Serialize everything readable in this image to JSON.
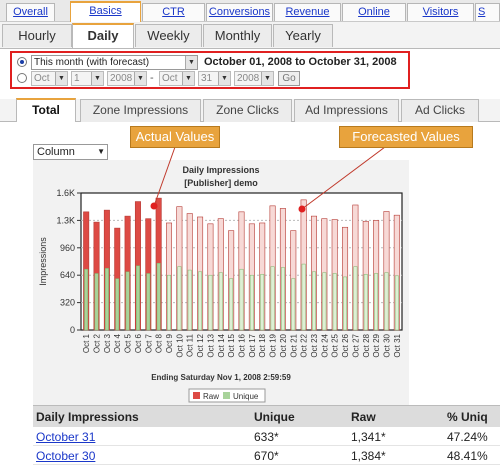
{
  "top_tabs": [
    {
      "label": "Overall"
    },
    {
      "label": "Basics"
    },
    {
      "label": "CTR"
    },
    {
      "label": "Conversions"
    },
    {
      "label": "Revenue"
    },
    {
      "label": "Online"
    },
    {
      "label": "Visitors"
    },
    {
      "label": "S"
    }
  ],
  "period_tabs": [
    {
      "label": "Hourly"
    },
    {
      "label": "Daily"
    },
    {
      "label": "Weekly"
    },
    {
      "label": "Monthly"
    },
    {
      "label": "Yearly"
    }
  ],
  "date_filter": {
    "preset_value": "This month (with forecast)",
    "range_text": "October 01, 2008 to October 31, 2008",
    "from_month": "Oct",
    "from_day": "1",
    "from_year": "2008",
    "to_month": "Oct",
    "to_day": "31",
    "to_year": "2008",
    "dash": "-",
    "go_label": "Go"
  },
  "sub_tabs": [
    {
      "label": "Total"
    },
    {
      "label": "Zone Impressions"
    },
    {
      "label": "Zone Clicks"
    },
    {
      "label": "Ad Impressions"
    },
    {
      "label": "Ad Clicks"
    }
  ],
  "chart_type_select": "Column",
  "callouts": {
    "actual": "Actual Values",
    "forecast": "Forecasted Values"
  },
  "colors": {
    "raw_actual": "#dd4a44",
    "raw_forecast": "#f7d9d6",
    "unique_actual": "#a8d39a",
    "unique_forecast": "#ddf0d4",
    "accent": "#e8a33d"
  },
  "chart_data": {
    "type": "bar",
    "title": "Daily Impressions",
    "subtitle": "[Publisher] demo",
    "ylabel": "Impressions",
    "footer": "Ending Saturday Nov 1, 2008 2:59:59",
    "ylim": [
      0,
      1600
    ],
    "yticks": [
      "0",
      "320",
      "640",
      "960",
      "1.3K",
      "1.6K"
    ],
    "ytick_values": [
      0,
      320,
      640,
      960,
      1280,
      1600
    ],
    "actual_through_index": 7,
    "categories": [
      "Oct 1",
      "Oct 2",
      "Oct 3",
      "Oct 4",
      "Oct 5",
      "Oct 6",
      "Oct 7",
      "Oct 8",
      "Oct 9",
      "Oct 10",
      "Oct 11",
      "Oct 12",
      "Oct 13",
      "Oct 14",
      "Oct 15",
      "Oct 16",
      "Oct 17",
      "Oct 18",
      "Oct 19",
      "Oct 20",
      "Oct 21",
      "Oct 22",
      "Oct 23",
      "Oct 24",
      "Oct 25",
      "Oct 26",
      "Oct 27",
      "Oct 28",
      "Oct 29",
      "Oct 30",
      "Oct 31"
    ],
    "series": [
      {
        "name": "Raw",
        "values": [
          1380,
          1260,
          1400,
          1190,
          1330,
          1500,
          1300,
          1540,
          1250,
          1440,
          1360,
          1320,
          1240,
          1300,
          1160,
          1380,
          1240,
          1250,
          1450,
          1420,
          1160,
          1520,
          1330,
          1300,
          1290,
          1200,
          1460,
          1270,
          1280,
          1384,
          1341
        ]
      },
      {
        "name": "Unique",
        "values": [
          710,
          660,
          720,
          600,
          680,
          750,
          660,
          780,
          640,
          740,
          700,
          680,
          640,
          670,
          600,
          710,
          640,
          650,
          740,
          730,
          600,
          770,
          680,
          670,
          660,
          620,
          740,
          650,
          660,
          670,
          633
        ]
      }
    ],
    "legend": [
      "Raw",
      "Unique"
    ],
    "legend_position": "bottom"
  },
  "table": {
    "headers": [
      "Daily Impressions",
      "Unique",
      "Raw",
      "% Uniq"
    ],
    "rows": [
      {
        "date": "October 31",
        "unique": "633*",
        "raw": "1,341*",
        "pct": "47.24%"
      },
      {
        "date": "October 30",
        "unique": "670*",
        "raw": "1,384*",
        "pct": "48.41%"
      }
    ]
  }
}
